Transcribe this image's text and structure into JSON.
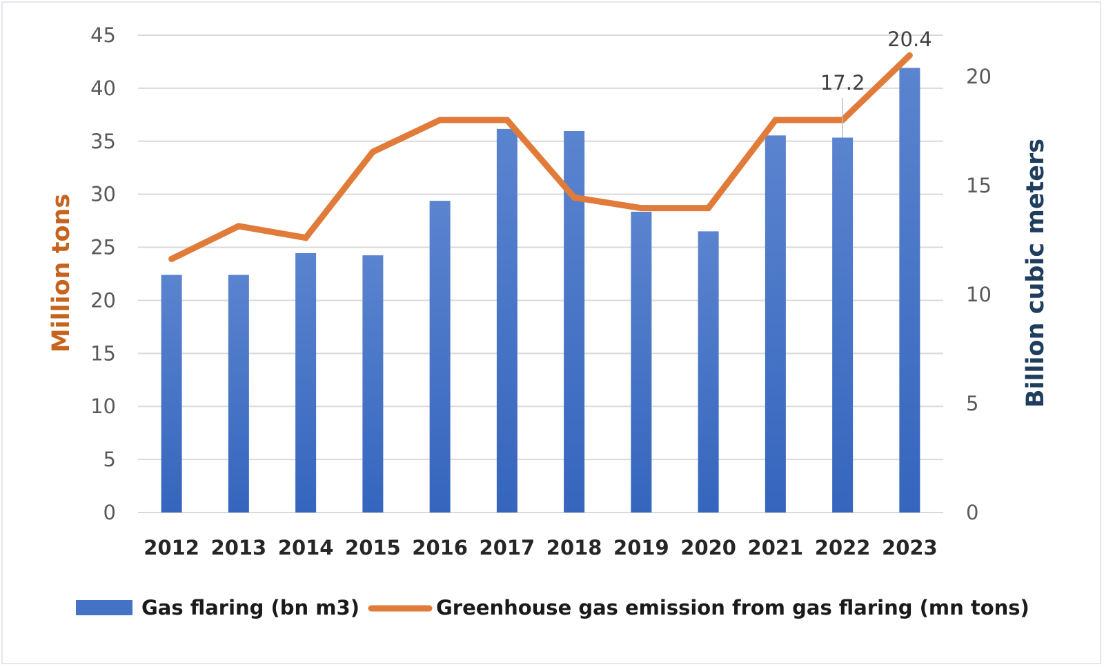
{
  "chart_data": {
    "type": "bar",
    "combo": "bar+line (dual axis)",
    "title": "",
    "categories": [
      "2012",
      "2013",
      "2014",
      "2015",
      "2016",
      "2017",
      "2018",
      "2019",
      "2020",
      "2021",
      "2022",
      "2023"
    ],
    "series": [
      {
        "name": "Gas flaring (bn m3)",
        "type": "bar",
        "axis": "right",
        "color": "#4472c4",
        "values": [
          10.9,
          10.9,
          11.9,
          11.8,
          14.3,
          17.6,
          17.5,
          13.8,
          12.9,
          17.3,
          17.2,
          20.4
        ]
      },
      {
        "name": "Greenhouse gas emission from gas flaring (mn tons)",
        "type": "line",
        "axis": "left",
        "color": "#e07b39",
        "values": [
          23.9,
          27.0,
          25.9,
          34.0,
          37.0,
          37.0,
          29.7,
          28.7,
          28.7,
          37.0,
          37.0,
          43.1
        ]
      }
    ],
    "data_labels": [
      {
        "series": "Gas flaring (bn m3)",
        "category": "2022",
        "text": "17.2"
      },
      {
        "series": "Gas flaring (bn m3)",
        "category": "2023",
        "text": "20.4"
      }
    ],
    "left_axis": {
      "label": "Million tons",
      "label_color": "#c5641e",
      "ylim": [
        0,
        45
      ],
      "ticks": [
        "0",
        "5",
        "10",
        "15",
        "20",
        "25",
        "30",
        "35",
        "40",
        "45"
      ]
    },
    "right_axis": {
      "label": "Billion cubic meters",
      "label_color": "#1f3d5c",
      "ylim": [
        0,
        21.9
      ],
      "ticks": [
        "0",
        "5",
        "10",
        "15",
        "20"
      ]
    },
    "xlabel": "",
    "grid": true,
    "legend": {
      "position": "bottom",
      "items": [
        {
          "label": "Gas flaring (bn m3)",
          "marker": "box",
          "color": "#4472c4"
        },
        {
          "label": "Greenhouse gas emission from gas flaring (mn tons)",
          "marker": "line",
          "color": "#e07b39"
        }
      ]
    }
  }
}
